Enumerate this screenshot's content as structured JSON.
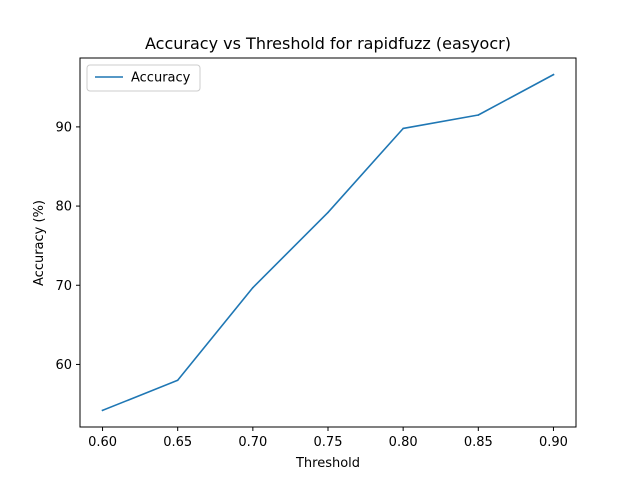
{
  "chart_data": {
    "type": "line",
    "title": "Accuracy vs Threshold for rapidfuzz (easyocr)",
    "xlabel": "Threshold",
    "ylabel": "Accuracy (%)",
    "x": [
      0.6,
      0.65,
      0.7,
      0.75,
      0.8,
      0.85,
      0.9
    ],
    "series": [
      {
        "name": "Accuracy",
        "color": "#1f77b4",
        "values": [
          54.2,
          58.0,
          69.7,
          79.2,
          89.8,
          91.5,
          96.6
        ]
      }
    ],
    "xlim": [
      0.585,
      0.915
    ],
    "ylim": [
      52.1,
      98.7
    ],
    "xticks": [
      0.6,
      0.65,
      0.7,
      0.75,
      0.8,
      0.85,
      0.9
    ],
    "xtick_labels": [
      "0.60",
      "0.65",
      "0.70",
      "0.75",
      "0.80",
      "0.85",
      "0.90"
    ],
    "yticks": [
      60,
      70,
      80,
      90
    ],
    "ytick_labels": [
      "60",
      "70",
      "80",
      "90"
    ],
    "grid": false,
    "legend_position": "top-left"
  }
}
